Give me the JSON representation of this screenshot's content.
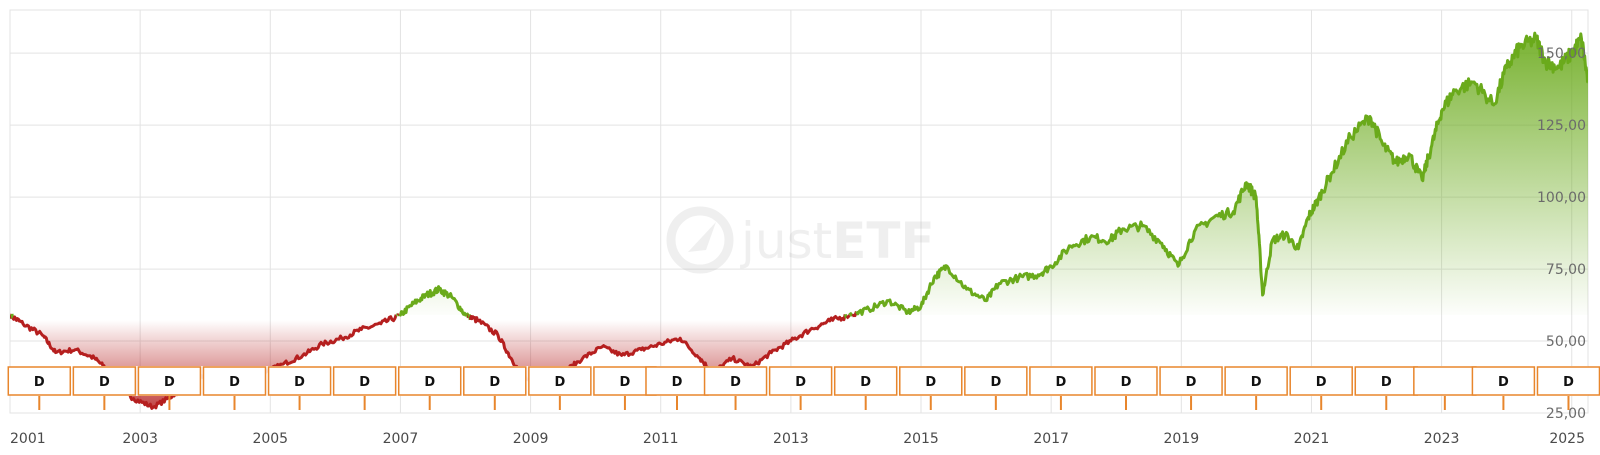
{
  "chart_data": {
    "type": "area",
    "title": "",
    "xlabel": "",
    "ylabel": "",
    "watermark": {
      "light": "just",
      "bold": "ETF"
    },
    "xlim": [
      2001.0,
      2025.25
    ],
    "ylim": [
      25,
      165
    ],
    "x_ticks": [
      "2001",
      "2003",
      "2005",
      "2007",
      "2009",
      "2011",
      "2013",
      "2015",
      "2017",
      "2019",
      "2021",
      "2023",
      "2025"
    ],
    "x_tick_values": [
      2001,
      2003,
      2005,
      2007,
      2009,
      2011,
      2013,
      2015,
      2017,
      2019,
      2021,
      2023,
      2025
    ],
    "y_ticks": [
      "25,00",
      "50,00",
      "75,00",
      "100,00",
      "125,00",
      "150,00"
    ],
    "y_tick_values": [
      25,
      50,
      75,
      100,
      125,
      150
    ],
    "grid": true,
    "baseline": 59,
    "colors": {
      "above": "#6aaa1b",
      "below": "#b51f1f",
      "marker_border": "#e8862c",
      "grid": "#e3e3e3"
    },
    "series": [
      {
        "x": [
          2001.0,
          2001.2,
          2001.5,
          2001.7,
          2002.0,
          2002.3,
          2002.5,
          2002.7,
          2002.9,
          2003.2,
          2003.5,
          2003.8,
          2004.0,
          2004.3,
          2004.6,
          2004.9,
          2005.2,
          2005.5,
          2005.8,
          2006.1,
          2006.4,
          2006.7,
          2007.0,
          2007.2,
          2007.4,
          2007.6,
          2007.8,
          2008.0,
          2008.2,
          2008.5,
          2008.7,
          2008.9,
          2009.2,
          2009.5,
          2009.8,
          2010.1,
          2010.4,
          2010.7,
          2011.0,
          2011.3,
          2011.6,
          2011.8,
          2012.1,
          2012.4,
          2012.7,
          2013.0,
          2013.3,
          2013.6,
          2013.9,
          2014.2,
          2014.5,
          2014.8,
          2015.0,
          2015.2,
          2015.4,
          2015.7,
          2016.0,
          2016.2,
          2016.5,
          2016.8,
          2017.0,
          2017.3,
          2017.6,
          2017.9,
          2018.1,
          2018.4,
          2018.7,
          2018.95,
          2019.2,
          2019.5,
          2019.8,
          2020.0,
          2020.15,
          2020.25,
          2020.4,
          2020.6,
          2020.8,
          2020.95,
          2021.1,
          2021.3,
          2021.6,
          2021.9,
          2022.1,
          2022.3,
          2022.5,
          2022.7,
          2022.85,
          2023.0,
          2023.2,
          2023.5,
          2023.8,
          2024.0,
          2024.2,
          2024.45,
          2024.6,
          2024.8,
          2025.0,
          2025.15,
          2025.25
        ],
        "values": [
          59,
          56,
          52,
          46,
          47,
          44,
          40,
          33,
          30,
          27,
          31,
          36,
          38,
          39,
          37,
          39,
          42,
          45,
          49,
          51,
          54,
          56,
          59,
          63,
          66,
          68,
          65,
          59,
          57,
          52,
          44,
          37,
          32,
          39,
          44,
          48,
          45,
          47,
          49,
          51,
          44,
          39,
          44,
          41,
          46,
          50,
          54,
          57,
          59,
          61,
          64,
          60,
          62,
          72,
          76,
          68,
          64,
          70,
          72,
          73,
          76,
          83,
          86,
          85,
          89,
          90,
          84,
          76,
          88,
          93,
          95,
          105,
          100,
          66,
          85,
          87,
          82,
          93,
          99,
          108,
          121,
          128,
          118,
          112,
          115,
          106,
          118,
          130,
          137,
          140,
          132,
          145,
          152,
          155,
          147,
          145,
          150,
          155,
          140
        ]
      }
    ],
    "dividend_markers": [
      {
        "x": 2001.45,
        "label": "D"
      },
      {
        "x": 2002.45,
        "label": "D"
      },
      {
        "x": 2003.45,
        "label": "D"
      },
      {
        "x": 2004.45,
        "label": "D"
      },
      {
        "x": 2005.45,
        "label": "D"
      },
      {
        "x": 2006.45,
        "label": "D"
      },
      {
        "x": 2007.45,
        "label": "D"
      },
      {
        "x": 2008.45,
        "label": "D"
      },
      {
        "x": 2009.45,
        "label": "D"
      },
      {
        "x": 2010.45,
        "label": "D"
      },
      {
        "x": 2011.25,
        "label": "D"
      },
      {
        "x": 2012.15,
        "label": "D"
      },
      {
        "x": 2013.15,
        "label": "D"
      },
      {
        "x": 2014.15,
        "label": "D"
      },
      {
        "x": 2015.15,
        "label": "D"
      },
      {
        "x": 2016.15,
        "label": "D"
      },
      {
        "x": 2017.15,
        "label": "D"
      },
      {
        "x": 2018.15,
        "label": "D"
      },
      {
        "x": 2019.15,
        "label": "D"
      },
      {
        "x": 2020.15,
        "label": "D"
      },
      {
        "x": 2021.15,
        "label": "D"
      },
      {
        "x": 2022.15,
        "label": "D"
      },
      {
        "x": 2023.05,
        "label": ""
      },
      {
        "x": 2023.95,
        "label": "D"
      },
      {
        "x": 2024.95,
        "label": "D"
      }
    ]
  }
}
